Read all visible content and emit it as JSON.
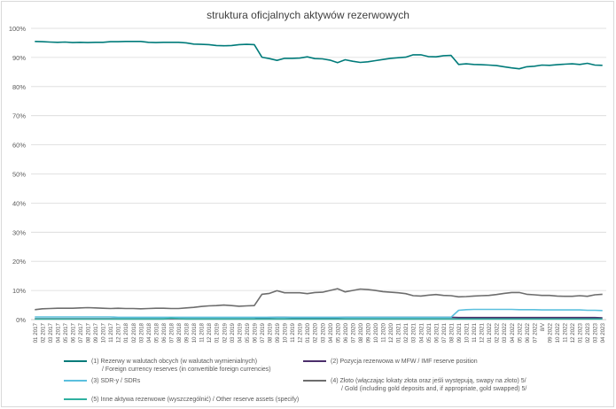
{
  "chart_data": {
    "type": "line",
    "title": "struktura oficjalnych aktywów rezerwowych",
    "ylim": [
      0,
      100
    ],
    "yticks": [
      "0%",
      "10%",
      "20%",
      "30%",
      "40%",
      "50%",
      "60%",
      "70%",
      "80%",
      "90%",
      "100%"
    ],
    "categories": [
      "01 2017",
      "02 2017",
      "03 2017",
      "04 2017",
      "05 2017",
      "06 2017",
      "07 2017",
      "08 2017",
      "09 2017",
      "10 2017",
      "11 2017",
      "12 2017",
      "01 2018",
      "02 2018",
      "03 2018",
      "04 2018",
      "05 2018",
      "06 2018",
      "07 2018",
      "08 2018",
      "09 2018",
      "10 2018",
      "11 2018",
      "12 2018",
      "01 2019",
      "02 2019",
      "03 2019",
      "04 2019",
      "05 2019",
      "06 2019",
      "07 2019",
      "08 2019",
      "09 2019",
      "10 2019",
      "11 2019",
      "12 2019",
      "01 2020",
      "02 2020",
      "03 2020",
      "04 2020",
      "05 2020",
      "06 2020",
      "07 2020",
      "08 2020",
      "09 2020",
      "10 2020",
      "11 2020",
      "12 2020",
      "01 2021",
      "02 2021",
      "03 2021",
      "04 2021",
      "05 2021",
      "06 2021",
      "07 2021",
      "08 2021",
      "09 2021",
      "10 2021",
      "11 2021",
      "12 2021",
      "01 2022",
      "02 2022",
      "03 2022",
      "04 2022",
      "05 2022",
      "06 2022",
      "07 2022",
      "8/V",
      "09 2022",
      "10 2022",
      "11 2022",
      "12 2022",
      "01 2023",
      "02 2023",
      "03 2023",
      "04 2023"
    ],
    "series": [
      {
        "name": "(1) Rezerwy w walutach obcych (w walutach wymienialnych)",
        "name_line2": "/ Foreign currency reserves (in convertible foreign currencies)",
        "color": "#007b7a",
        "values": [
          95.5,
          95.4,
          95.3,
          95.2,
          95.3,
          95.1,
          95.2,
          95.1,
          95.2,
          95.2,
          95.4,
          95.4,
          95.5,
          95.5,
          95.5,
          95.2,
          95.1,
          95.2,
          95.2,
          95.2,
          95.0,
          94.6,
          94.5,
          94.4,
          94.1,
          94.0,
          94.1,
          94.4,
          94.5,
          94.4,
          90.1,
          89.6,
          89.0,
          89.7,
          89.7,
          89.8,
          90.2,
          89.6,
          89.5,
          89.1,
          88.2,
          89.2,
          88.7,
          88.3,
          88.5,
          88.9,
          89.3,
          89.7,
          89.9,
          90.1,
          90.9,
          90.9,
          90.3,
          90.2,
          90.6,
          90.7,
          87.6,
          87.8,
          87.6,
          87.5,
          87.4,
          87.2,
          86.8,
          86.4,
          86.1,
          86.8,
          87.0,
          87.4,
          87.3,
          87.5,
          87.7,
          87.8,
          87.6,
          88.0,
          87.4,
          87.3
        ]
      },
      {
        "name": "(2) Pozycja rezerwowa w MFW / IMF reserve position",
        "name_line2": "",
        "color": "#4b2e6b",
        "values": [
          0.3,
          0.3,
          0.3,
          0.3,
          0.3,
          0.3,
          0.3,
          0.3,
          0.3,
          0.3,
          0.3,
          0.3,
          0.3,
          0.3,
          0.3,
          0.3,
          0.3,
          0.3,
          0.3,
          0.3,
          0.3,
          0.3,
          0.3,
          0.3,
          0.3,
          0.3,
          0.3,
          0.3,
          0.3,
          0.3,
          0.6,
          0.7,
          0.8,
          0.8,
          0.7,
          0.7,
          0.7,
          0.7,
          0.7,
          0.7,
          0.7,
          0.8,
          0.8,
          0.8,
          0.8,
          0.8,
          0.8,
          0.8,
          0.8,
          0.8,
          0.8,
          0.8,
          0.8,
          0.8,
          0.8,
          0.8,
          0.7,
          0.7,
          0.7,
          0.7,
          0.7,
          0.7,
          0.7,
          0.7,
          0.7,
          0.7,
          0.7,
          0.7,
          0.7,
          0.7,
          0.7,
          0.7,
          0.7,
          0.7,
          0.7,
          0.6
        ]
      },
      {
        "name": "(3) SDR-y /  SDRs",
        "name_line2": "",
        "color": "#5bc0de",
        "values": [
          0.9,
          0.9,
          0.9,
          0.9,
          0.9,
          0.9,
          0.9,
          0.9,
          0.9,
          0.9,
          0.9,
          0.8,
          0.8,
          0.8,
          0.8,
          0.8,
          0.8,
          0.8,
          0.8,
          0.8,
          0.8,
          0.8,
          0.8,
          0.8,
          0.8,
          0.8,
          0.8,
          0.8,
          0.8,
          0.8,
          0.8,
          0.8,
          0.8,
          0.8,
          0.8,
          0.8,
          0.8,
          0.8,
          0.8,
          0.8,
          0.8,
          0.8,
          0.8,
          0.8,
          0.8,
          0.8,
          0.8,
          0.8,
          0.8,
          0.8,
          0.8,
          0.8,
          0.8,
          0.8,
          0.8,
          0.8,
          3.2,
          3.4,
          3.5,
          3.5,
          3.5,
          3.5,
          3.5,
          3.5,
          3.4,
          3.4,
          3.4,
          3.3,
          3.3,
          3.3,
          3.3,
          3.3,
          3.3,
          3.2,
          3.2,
          3.1
        ]
      },
      {
        "name": "(4) Złoto (włączając lokaty złota oraz jeśli występują, swapy na złoto) 5/",
        "name_line2": "/ Gold (including gold deposits and, if appropriate, gold swapped) 5/",
        "color": "#6d6d6d",
        "values": [
          3.4,
          3.7,
          3.8,
          3.9,
          3.9,
          3.9,
          4.0,
          4.1,
          4.0,
          3.9,
          3.8,
          3.9,
          3.8,
          3.8,
          3.7,
          3.8,
          3.9,
          3.9,
          3.8,
          3.8,
          4.0,
          4.2,
          4.5,
          4.7,
          4.8,
          5.0,
          4.8,
          4.6,
          4.7,
          4.8,
          8.7,
          9.0,
          9.9,
          9.2,
          9.2,
          9.2,
          8.9,
          9.3,
          9.4,
          10.0,
          10.6,
          9.5,
          10.0,
          10.5,
          10.3,
          10.0,
          9.6,
          9.4,
          9.2,
          8.9,
          8.2,
          8.1,
          8.4,
          8.6,
          8.3,
          8.2,
          7.8,
          7.9,
          8.1,
          8.2,
          8.3,
          8.6,
          9.0,
          9.3,
          9.3,
          8.7,
          8.5,
          8.3,
          8.3,
          8.1,
          8.0,
          8.0,
          8.2,
          8.0,
          8.5,
          8.7
        ]
      },
      {
        "name": "(5) Inne aktywa rezerwowe (wyszczególnić) / Other reserve assets (specify)",
        "name_line2": "",
        "color": "#2fb0a0",
        "values": [
          0.2,
          0.2,
          0.2,
          0.2,
          0.2,
          0.2,
          0.2,
          0.2,
          0.2,
          0.2,
          0.2,
          0.2,
          0.2,
          0.2,
          0.2,
          0.2,
          0.2,
          0.2,
          0.5,
          0.3,
          0.2,
          0.2,
          0.2,
          0.2,
          0.2,
          0.2,
          0.2,
          0.2,
          0.2,
          0.2,
          0.2,
          0.2,
          0.2,
          0.2,
          0.2,
          0.2,
          0.2,
          0.2,
          0.2,
          0.2,
          0.2,
          0.2,
          0.2,
          0.2,
          0.2,
          0.2,
          0.2,
          0.2,
          0.2,
          0.2,
          0.2,
          0.2,
          0.2,
          0.2,
          0.2,
          0.2,
          0.2,
          0.2,
          0.2,
          0.2,
          0.2,
          0.2,
          0.2,
          0.2,
          0.2,
          0.2,
          0.2,
          0.2,
          0.2,
          0.2,
          0.2,
          0.2,
          0.2,
          0.2,
          0.2,
          0.2
        ]
      }
    ]
  }
}
